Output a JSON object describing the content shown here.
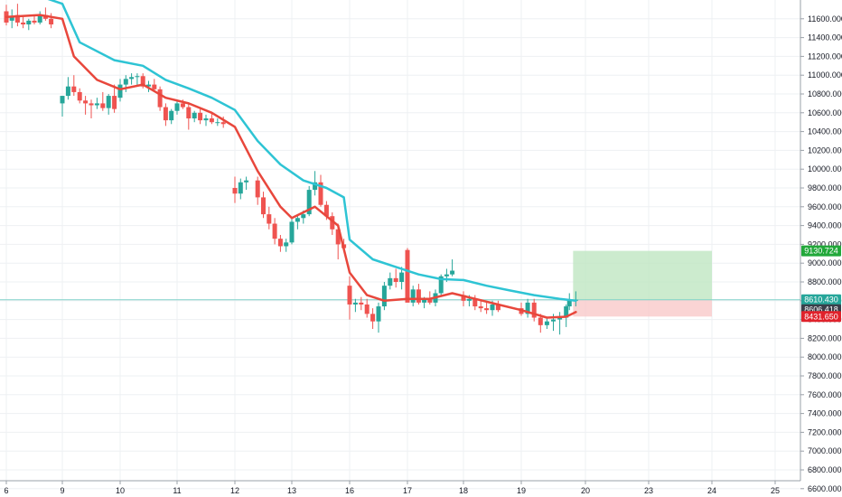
{
  "colors": {
    "background": "#ffffff",
    "grid": "#eef0f3",
    "axis_text": "#131722",
    "axis_line": "#9aa0a8",
    "up_candle": "#26a69a",
    "down_candle": "#ef5350",
    "ema_fast": "#e8473c",
    "ema_slow": "#2ec4d4",
    "target_zone": "#bfe6c2",
    "stop_zone": "#f9c9c9",
    "target_tag": "#22a83a",
    "stop_tag": "#e0222b",
    "last_price_tag": "#26a69a",
    "mid_tag": "#3a3f4a",
    "last_price_line": "#7fd1c8"
  },
  "chart_data": {
    "type": "candlestick",
    "title": "",
    "xlabel": "",
    "ylabel": "",
    "ylim": [
      6550,
      11800
    ],
    "grid": true,
    "y_ticks": [
      "11600.000",
      "11400.000",
      "11200.000",
      "11000.000",
      "10800.000",
      "10600.000",
      "10400.000",
      "10200.000",
      "10000.000",
      "9800.000",
      "9600.000",
      "9400.000",
      "9200.000",
      "9000.000",
      "8800.000",
      "8600.000",
      "8400.000",
      "8200.000",
      "8000.000",
      "7800.000",
      "7600.000",
      "7400.000",
      "7200.000",
      "7000.000",
      "6800.000",
      "6600.000"
    ],
    "x_ticks": [
      {
        "label": "6",
        "day": 6
      },
      {
        "label": "9",
        "day": 9
      },
      {
        "label": "10",
        "day": 10
      },
      {
        "label": "11",
        "day": 11
      },
      {
        "label": "12",
        "day": 12
      },
      {
        "label": "13",
        "day": 13
      },
      {
        "label": "16",
        "day": 16
      },
      {
        "label": "17",
        "day": 17
      },
      {
        "label": "18",
        "day": 18
      },
      {
        "label": "19",
        "day": 19
      },
      {
        "label": "20",
        "day": 20
      },
      {
        "label": "23",
        "day": 23
      },
      {
        "label": "24",
        "day": 24
      },
      {
        "label": "25",
        "day": 25
      }
    ],
    "candles": [
      {
        "day": 6.0,
        "o": 11680,
        "h": 11750,
        "l": 11530,
        "c": 11560
      },
      {
        "day": 6.1,
        "o": 11580,
        "h": 11700,
        "l": 11500,
        "c": 11620
      },
      {
        "day": 6.2,
        "o": 11640,
        "h": 11760,
        "l": 11520,
        "c": 11560
      },
      {
        "day": 6.3,
        "o": 11560,
        "h": 11620,
        "l": 11500,
        "c": 11540
      },
      {
        "day": 6.4,
        "o": 11540,
        "h": 11600,
        "l": 11480,
        "c": 11580
      },
      {
        "day": 6.5,
        "o": 11580,
        "h": 11640,
        "l": 11540,
        "c": 11560
      },
      {
        "day": 6.6,
        "o": 11560,
        "h": 11680,
        "l": 11540,
        "c": 11640
      },
      {
        "day": 6.7,
        "o": 11640,
        "h": 11720,
        "l": 11580,
        "c": 11600
      },
      {
        "day": 6.8,
        "o": 11600,
        "h": 11660,
        "l": 11500,
        "c": 11540
      },
      {
        "day": 9.0,
        "o": 10700,
        "h": 10780,
        "l": 10560,
        "c": 10780
      },
      {
        "day": 9.1,
        "o": 10780,
        "h": 10980,
        "l": 10740,
        "c": 10880
      },
      {
        "day": 9.2,
        "o": 10880,
        "h": 11000,
        "l": 10780,
        "c": 10820
      },
      {
        "day": 9.3,
        "o": 10820,
        "h": 10860,
        "l": 10700,
        "c": 10730
      },
      {
        "day": 9.4,
        "o": 10730,
        "h": 10780,
        "l": 10580,
        "c": 10700
      },
      {
        "day": 9.5,
        "o": 10700,
        "h": 10740,
        "l": 10540,
        "c": 10680
      },
      {
        "day": 9.6,
        "o": 10680,
        "h": 10760,
        "l": 10640,
        "c": 10700
      },
      {
        "day": 9.7,
        "o": 10700,
        "h": 10820,
        "l": 10620,
        "c": 10650
      },
      {
        "day": 9.8,
        "o": 10650,
        "h": 10800,
        "l": 10580,
        "c": 10780
      },
      {
        "day": 9.9,
        "o": 10780,
        "h": 10900,
        "l": 10600,
        "c": 10640
      },
      {
        "day": 10.0,
        "o": 10760,
        "h": 10960,
        "l": 10720,
        "c": 10900
      },
      {
        "day": 10.1,
        "o": 10900,
        "h": 11000,
        "l": 10820,
        "c": 10960
      },
      {
        "day": 10.2,
        "o": 10960,
        "h": 11020,
        "l": 10900,
        "c": 10980
      },
      {
        "day": 10.3,
        "o": 10980,
        "h": 11020,
        "l": 10880,
        "c": 10990
      },
      {
        "day": 10.4,
        "o": 10990,
        "h": 11020,
        "l": 10860,
        "c": 10880
      },
      {
        "day": 10.5,
        "o": 10880,
        "h": 10940,
        "l": 10820,
        "c": 10900
      },
      {
        "day": 10.6,
        "o": 10900,
        "h": 10960,
        "l": 10820,
        "c": 10850
      },
      {
        "day": 10.7,
        "o": 10850,
        "h": 10880,
        "l": 10620,
        "c": 10660
      },
      {
        "day": 10.8,
        "o": 10660,
        "h": 10700,
        "l": 10460,
        "c": 10520
      },
      {
        "day": 10.9,
        "o": 10520,
        "h": 10640,
        "l": 10480,
        "c": 10620
      },
      {
        "day": 11.0,
        "o": 10620,
        "h": 10720,
        "l": 10580,
        "c": 10700
      },
      {
        "day": 11.1,
        "o": 10700,
        "h": 10740,
        "l": 10640,
        "c": 10660
      },
      {
        "day": 11.2,
        "o": 10660,
        "h": 10700,
        "l": 10420,
        "c": 10540
      },
      {
        "day": 11.3,
        "o": 10540,
        "h": 10620,
        "l": 10500,
        "c": 10600
      },
      {
        "day": 11.4,
        "o": 10600,
        "h": 10640,
        "l": 10480,
        "c": 10520
      },
      {
        "day": 11.5,
        "o": 10520,
        "h": 10580,
        "l": 10460,
        "c": 10540
      },
      {
        "day": 11.6,
        "o": 10540,
        "h": 10600,
        "l": 10480,
        "c": 10500
      },
      {
        "day": 11.7,
        "o": 10500,
        "h": 10540,
        "l": 10460,
        "c": 10500
      },
      {
        "day": 11.8,
        "o": 10500,
        "h": 10560,
        "l": 10440,
        "c": 10480
      },
      {
        "day": 12.0,
        "o": 9800,
        "h": 9920,
        "l": 9640,
        "c": 9740
      },
      {
        "day": 12.1,
        "o": 9740,
        "h": 9900,
        "l": 9680,
        "c": 9860
      },
      {
        "day": 12.2,
        "o": 9860,
        "h": 9920,
        "l": 9780,
        "c": 9880
      },
      {
        "day": 12.4,
        "o": 9880,
        "h": 9920,
        "l": 9620,
        "c": 9700
      },
      {
        "day": 12.5,
        "o": 9700,
        "h": 9760,
        "l": 9480,
        "c": 9520
      },
      {
        "day": 12.6,
        "o": 9520,
        "h": 9600,
        "l": 9360,
        "c": 9420
      },
      {
        "day": 12.7,
        "o": 9420,
        "h": 9480,
        "l": 9200,
        "c": 9260
      },
      {
        "day": 12.8,
        "o": 9260,
        "h": 9300,
        "l": 9120,
        "c": 9180
      },
      {
        "day": 12.9,
        "o": 9180,
        "h": 9260,
        "l": 9120,
        "c": 9220
      },
      {
        "day": 13.0,
        "o": 9220,
        "h": 9480,
        "l": 9200,
        "c": 9440
      },
      {
        "day": 13.1,
        "o": 9440,
        "h": 9520,
        "l": 9360,
        "c": 9480
      },
      {
        "day": 13.2,
        "o": 9480,
        "h": 9560,
        "l": 9420,
        "c": 9520
      },
      {
        "day": 13.3,
        "o": 9520,
        "h": 9820,
        "l": 9500,
        "c": 9780
      },
      {
        "day": 13.4,
        "o": 9780,
        "h": 9980,
        "l": 9720,
        "c": 9860
      },
      {
        "day": 13.5,
        "o": 9860,
        "h": 9940,
        "l": 9600,
        "c": 9620
      },
      {
        "day": 13.6,
        "o": 9620,
        "h": 9660,
        "l": 9460,
        "c": 9500
      },
      {
        "day": 13.7,
        "o": 9500,
        "h": 9540,
        "l": 9300,
        "c": 9360
      },
      {
        "day": 13.8,
        "o": 9360,
        "h": 9420,
        "l": 9040,
        "c": 9200
      },
      {
        "day": 13.9,
        "o": 9200,
        "h": 9260,
        "l": 9120,
        "c": 9160
      },
      {
        "day": 16.0,
        "o": 8760,
        "h": 8860,
        "l": 8400,
        "c": 8560
      },
      {
        "day": 16.1,
        "o": 8560,
        "h": 8620,
        "l": 8480,
        "c": 8580
      },
      {
        "day": 16.2,
        "o": 8580,
        "h": 8640,
        "l": 8500,
        "c": 8560
      },
      {
        "day": 16.3,
        "o": 8560,
        "h": 8620,
        "l": 8420,
        "c": 8460
      },
      {
        "day": 16.4,
        "o": 8460,
        "h": 8520,
        "l": 8300,
        "c": 8380
      },
      {
        "day": 16.5,
        "o": 8380,
        "h": 8580,
        "l": 8260,
        "c": 8540
      },
      {
        "day": 16.6,
        "o": 8540,
        "h": 8800,
        "l": 8500,
        "c": 8760
      },
      {
        "day": 16.7,
        "o": 8760,
        "h": 8900,
        "l": 8720,
        "c": 8840
      },
      {
        "day": 16.8,
        "o": 8840,
        "h": 8940,
        "l": 8740,
        "c": 8800
      },
      {
        "day": 16.9,
        "o": 8800,
        "h": 8960,
        "l": 8720,
        "c": 8900
      },
      {
        "day": 17.0,
        "o": 9140,
        "h": 9160,
        "l": 8600,
        "c": 8580
      },
      {
        "day": 17.1,
        "o": 8580,
        "h": 8760,
        "l": 8540,
        "c": 8720
      },
      {
        "day": 17.2,
        "o": 8720,
        "h": 8780,
        "l": 8560,
        "c": 8580
      },
      {
        "day": 17.3,
        "o": 8580,
        "h": 8640,
        "l": 8520,
        "c": 8620
      },
      {
        "day": 17.4,
        "o": 8620,
        "h": 8700,
        "l": 8560,
        "c": 8580
      },
      {
        "day": 17.5,
        "o": 8580,
        "h": 8720,
        "l": 8540,
        "c": 8680
      },
      {
        "day": 17.6,
        "o": 8680,
        "h": 8880,
        "l": 8640,
        "c": 8860
      },
      {
        "day": 17.7,
        "o": 8860,
        "h": 8940,
        "l": 8800,
        "c": 8880
      },
      {
        "day": 17.8,
        "o": 8880,
        "h": 9040,
        "l": 8860,
        "c": 8920
      },
      {
        "day": 18.0,
        "o": 8660,
        "h": 8700,
        "l": 8540,
        "c": 8600
      },
      {
        "day": 18.1,
        "o": 8600,
        "h": 8660,
        "l": 8540,
        "c": 8620
      },
      {
        "day": 18.2,
        "o": 8620,
        "h": 8660,
        "l": 8500,
        "c": 8540
      },
      {
        "day": 18.3,
        "o": 8540,
        "h": 8600,
        "l": 8480,
        "c": 8520
      },
      {
        "day": 18.4,
        "o": 8520,
        "h": 8580,
        "l": 8460,
        "c": 8500
      },
      {
        "day": 18.5,
        "o": 8500,
        "h": 8600,
        "l": 8440,
        "c": 8560
      },
      {
        "day": 18.6,
        "o": 8560,
        "h": 8600,
        "l": 8480,
        "c": 8500
      },
      {
        "day": 19.0,
        "o": 8520,
        "h": 8580,
        "l": 8440,
        "c": 8460
      },
      {
        "day": 19.1,
        "o": 8460,
        "h": 8620,
        "l": 8420,
        "c": 8580
      },
      {
        "day": 19.2,
        "o": 8580,
        "h": 8620,
        "l": 8380,
        "c": 8420
      },
      {
        "day": 19.3,
        "o": 8420,
        "h": 8460,
        "l": 8260,
        "c": 8340
      },
      {
        "day": 19.4,
        "o": 8340,
        "h": 8420,
        "l": 8300,
        "c": 8380
      },
      {
        "day": 19.5,
        "o": 8380,
        "h": 8460,
        "l": 8280,
        "c": 8400
      },
      {
        "day": 19.6,
        "o": 8400,
        "h": 8480,
        "l": 8240,
        "c": 8420
      },
      {
        "day": 19.7,
        "o": 8420,
        "h": 8560,
        "l": 8320,
        "c": 8540
      },
      {
        "day": 19.75,
        "o": 8540,
        "h": 8680,
        "l": 8500,
        "c": 8600
      },
      {
        "day": 19.85,
        "o": 8600,
        "h": 8700,
        "l": 8540,
        "c": 8610
      }
    ],
    "ema_fast": [
      {
        "day": 6.0,
        "v": 11620
      },
      {
        "day": 6.6,
        "v": 11640
      },
      {
        "day": 8.8,
        "v": 11600
      },
      {
        "day": 9.2,
        "v": 11200
      },
      {
        "day": 9.6,
        "v": 10950
      },
      {
        "day": 10.0,
        "v": 10850
      },
      {
        "day": 10.4,
        "v": 10900
      },
      {
        "day": 10.8,
        "v": 10760
      },
      {
        "day": 11.2,
        "v": 10700
      },
      {
        "day": 11.6,
        "v": 10600
      },
      {
        "day": 12.0,
        "v": 10450
      },
      {
        "day": 12.4,
        "v": 9980
      },
      {
        "day": 12.8,
        "v": 9600
      },
      {
        "day": 13.0,
        "v": 9480
      },
      {
        "day": 13.4,
        "v": 9600
      },
      {
        "day": 13.8,
        "v": 9400
      },
      {
        "day": 16.0,
        "v": 8900
      },
      {
        "day": 16.3,
        "v": 8660
      },
      {
        "day": 16.6,
        "v": 8600
      },
      {
        "day": 17.0,
        "v": 8620
      },
      {
        "day": 17.4,
        "v": 8620
      },
      {
        "day": 17.8,
        "v": 8680
      },
      {
        "day": 18.2,
        "v": 8620
      },
      {
        "day": 18.6,
        "v": 8560
      },
      {
        "day": 19.0,
        "v": 8500
      },
      {
        "day": 19.4,
        "v": 8420
      },
      {
        "day": 19.7,
        "v": 8430
      },
      {
        "day": 19.85,
        "v": 8480
      }
    ],
    "ema_slow": [
      {
        "day": 6.6,
        "v": 11840
      },
      {
        "day": 8.8,
        "v": 11760
      },
      {
        "day": 9.3,
        "v": 11350
      },
      {
        "day": 9.9,
        "v": 11160
      },
      {
        "day": 10.4,
        "v": 11100
      },
      {
        "day": 10.8,
        "v": 10950
      },
      {
        "day": 11.2,
        "v": 10860
      },
      {
        "day": 11.6,
        "v": 10760
      },
      {
        "day": 12.0,
        "v": 10630
      },
      {
        "day": 12.4,
        "v": 10300
      },
      {
        "day": 12.8,
        "v": 10050
      },
      {
        "day": 13.2,
        "v": 9880
      },
      {
        "day": 13.6,
        "v": 9800
      },
      {
        "day": 13.9,
        "v": 9700
      },
      {
        "day": 16.0,
        "v": 9250
      },
      {
        "day": 16.4,
        "v": 9040
      },
      {
        "day": 16.8,
        "v": 8960
      },
      {
        "day": 17.2,
        "v": 8880
      },
      {
        "day": 17.6,
        "v": 8830
      },
      {
        "day": 18.0,
        "v": 8820
      },
      {
        "day": 18.4,
        "v": 8760
      },
      {
        "day": 18.8,
        "v": 8710
      },
      {
        "day": 19.2,
        "v": 8660
      },
      {
        "day": 19.6,
        "v": 8620
      },
      {
        "day": 19.85,
        "v": 8600
      }
    ],
    "position": {
      "start_day": 19.85,
      "end_day": 24.0,
      "entry": 8610.43,
      "target": 9130.724,
      "stop": 8431.65
    },
    "price_tags": {
      "target": "9130.724",
      "last_price": "8610.430",
      "mid_price": "8606.418",
      "stop": "8431.650"
    }
  }
}
